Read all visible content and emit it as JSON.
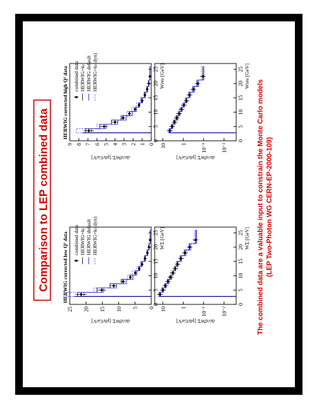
{
  "slide": {
    "title": "Comparison to LEP combined data",
    "caption_line1": "The combined data are a valuable input to constrain the Monte Carlo models",
    "caption_line2": "(LEP Two-Photon WG CERN-EP-2000-109)",
    "accent_color": "#cc0000",
    "data_color": "#00008b"
  },
  "panels": {
    "low": {
      "title": "HERWIG corrected low Q² data",
      "ylabel_lin": "dσ/dWΣ [pb/GeV]",
      "ylabel_log": "dσ/dWΣ [pb/GeV]",
      "xlabel": "WΣ [GeV]",
      "yticks_lin": [
        "25",
        "20",
        "15",
        "10",
        "5",
        "0"
      ],
      "yticks_log": [
        "10",
        "1",
        "10⁻¹",
        "10⁻²"
      ],
      "xticks": [
        "0",
        "5",
        "10",
        "15",
        "20",
        "25"
      ],
      "legend": [
        "combined data",
        "HERWIG+kₜ",
        "HERWIG default",
        "HERWIG+kₜ(dyn)"
      ]
    },
    "high": {
      "title": "HERWIG corrected high Q² data",
      "ylabel_lin": "dσ/dWΣ [pb/GeV]",
      "ylabel_log": "dσ/dWΣ [pb/GeV]",
      "xlabel": "Wres [GeV]",
      "yticks_lin": [
        "9",
        "8",
        "7",
        "6",
        "5",
        "4",
        "3",
        "2",
        "1",
        "0"
      ],
      "yticks_log": [
        "10",
        "1",
        "10⁻¹",
        "10⁻²"
      ],
      "xticks": [
        "0",
        "5",
        "10",
        "15",
        "20",
        "25"
      ],
      "legend": [
        "combined data",
        "HERWIG+kₜ",
        "HERWIG default",
        "HERWIG+kₜ(dyn)"
      ]
    }
  },
  "chart_data": [
    {
      "type": "line",
      "title": "HERWIG corrected low Q² data",
      "xlabel": "WΣ [GeV]",
      "ylabel": "dσ/dWΣ [pb/GeV]",
      "xlim": [
        0,
        27
      ],
      "ylim": [
        0,
        25
      ],
      "x": [
        3.5,
        5,
        6.5,
        8,
        9.5,
        11,
        12.5,
        14,
        16,
        18,
        20,
        22.5
      ],
      "series": [
        {
          "name": "combined data",
          "values": [
            21.5,
            15.2,
            11.5,
            8.6,
            6.4,
            4.9,
            3.7,
            2.8,
            1.9,
            1.2,
            0.7,
            0.35
          ]
        }
      ]
    },
    {
      "type": "line",
      "title": "HERWIG corrected high Q² data",
      "xlabel": "Wres [GeV]",
      "ylabel": "dσ/dWΣ [pb/GeV]",
      "xlim": [
        0,
        27
      ],
      "ylim": [
        0,
        9
      ],
      "x": [
        3.5,
        5,
        6.5,
        8,
        9.5,
        11,
        12.5,
        14,
        16,
        18,
        20,
        22.5
      ],
      "series": [
        {
          "name": "combined data",
          "values": [
            6.9,
            5.2,
            4.0,
            3.1,
            2.4,
            1.8,
            1.35,
            1.0,
            0.7,
            0.45,
            0.28,
            0.15
          ]
        }
      ]
    }
  ]
}
